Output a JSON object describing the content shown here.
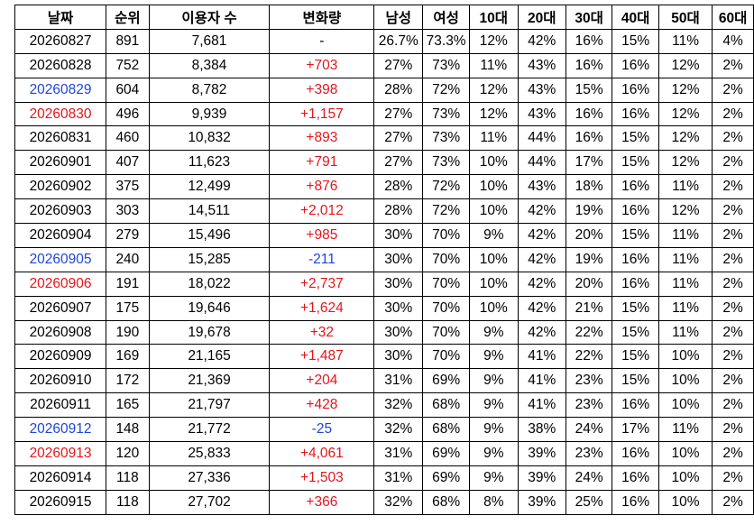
{
  "table": {
    "headers": [
      "날짜",
      "순위",
      "이용자 수",
      "변화량",
      "남성",
      "여성",
      "10대",
      "20대",
      "30대",
      "40대",
      "50대",
      "60대"
    ],
    "rows": [
      {
        "date": "20260827",
        "date_color": "black",
        "rank": "891",
        "users": "7,681",
        "change": "-",
        "change_color": "black",
        "male": "26.7%",
        "female": "73.3%",
        "a10": "12%",
        "a20": "42%",
        "a30": "16%",
        "a40": "15%",
        "a50": "11%",
        "a60": "4%"
      },
      {
        "date": "20260828",
        "date_color": "black",
        "rank": "752",
        "users": "8,384",
        "change": "+703",
        "change_color": "red",
        "male": "27%",
        "female": "73%",
        "a10": "11%",
        "a20": "43%",
        "a30": "16%",
        "a40": "16%",
        "a50": "12%",
        "a60": "2%"
      },
      {
        "date": "20260829",
        "date_color": "blue",
        "rank": "604",
        "users": "8,782",
        "change": "+398",
        "change_color": "red",
        "male": "28%",
        "female": "72%",
        "a10": "12%",
        "a20": "43%",
        "a30": "15%",
        "a40": "16%",
        "a50": "12%",
        "a60": "2%"
      },
      {
        "date": "20260830",
        "date_color": "red",
        "rank": "496",
        "users": "9,939",
        "change": "+1,157",
        "change_color": "red",
        "male": "27%",
        "female": "73%",
        "a10": "12%",
        "a20": "43%",
        "a30": "16%",
        "a40": "16%",
        "a50": "12%",
        "a60": "2%"
      },
      {
        "date": "20260831",
        "date_color": "black",
        "rank": "460",
        "users": "10,832",
        "change": "+893",
        "change_color": "red",
        "male": "27%",
        "female": "73%",
        "a10": "11%",
        "a20": "44%",
        "a30": "16%",
        "a40": "15%",
        "a50": "12%",
        "a60": "2%"
      },
      {
        "date": "20260901",
        "date_color": "black",
        "rank": "407",
        "users": "11,623",
        "change": "+791",
        "change_color": "red",
        "male": "27%",
        "female": "73%",
        "a10": "10%",
        "a20": "44%",
        "a30": "17%",
        "a40": "15%",
        "a50": "12%",
        "a60": "2%"
      },
      {
        "date": "20260902",
        "date_color": "black",
        "rank": "375",
        "users": "12,499",
        "change": "+876",
        "change_color": "red",
        "male": "28%",
        "female": "72%",
        "a10": "10%",
        "a20": "43%",
        "a30": "18%",
        "a40": "16%",
        "a50": "11%",
        "a60": "2%"
      },
      {
        "date": "20260903",
        "date_color": "black",
        "rank": "303",
        "users": "14,511",
        "change": "+2,012",
        "change_color": "red",
        "male": "28%",
        "female": "72%",
        "a10": "10%",
        "a20": "42%",
        "a30": "19%",
        "a40": "16%",
        "a50": "12%",
        "a60": "2%"
      },
      {
        "date": "20260904",
        "date_color": "black",
        "rank": "279",
        "users": "15,496",
        "change": "+985",
        "change_color": "red",
        "male": "30%",
        "female": "70%",
        "a10": "9%",
        "a20": "42%",
        "a30": "20%",
        "a40": "15%",
        "a50": "11%",
        "a60": "2%"
      },
      {
        "date": "20260905",
        "date_color": "blue",
        "rank": "240",
        "users": "15,285",
        "change": "-211",
        "change_color": "blue",
        "male": "30%",
        "female": "70%",
        "a10": "10%",
        "a20": "42%",
        "a30": "19%",
        "a40": "16%",
        "a50": "11%",
        "a60": "2%"
      },
      {
        "date": "20260906",
        "date_color": "red",
        "rank": "191",
        "users": "18,022",
        "change": "+2,737",
        "change_color": "red",
        "male": "30%",
        "female": "70%",
        "a10": "10%",
        "a20": "42%",
        "a30": "20%",
        "a40": "16%",
        "a50": "11%",
        "a60": "2%"
      },
      {
        "date": "20260907",
        "date_color": "black",
        "rank": "175",
        "users": "19,646",
        "change": "+1,624",
        "change_color": "red",
        "male": "30%",
        "female": "70%",
        "a10": "10%",
        "a20": "42%",
        "a30": "21%",
        "a40": "15%",
        "a50": "11%",
        "a60": "2%"
      },
      {
        "date": "20260908",
        "date_color": "black",
        "rank": "190",
        "users": "19,678",
        "change": "+32",
        "change_color": "red",
        "male": "30%",
        "female": "70%",
        "a10": "9%",
        "a20": "42%",
        "a30": "22%",
        "a40": "15%",
        "a50": "11%",
        "a60": "2%"
      },
      {
        "date": "20260909",
        "date_color": "black",
        "rank": "169",
        "users": "21,165",
        "change": "+1,487",
        "change_color": "red",
        "male": "30%",
        "female": "70%",
        "a10": "9%",
        "a20": "41%",
        "a30": "22%",
        "a40": "15%",
        "a50": "10%",
        "a60": "2%"
      },
      {
        "date": "20260910",
        "date_color": "black",
        "rank": "172",
        "users": "21,369",
        "change": "+204",
        "change_color": "red",
        "male": "31%",
        "female": "69%",
        "a10": "9%",
        "a20": "41%",
        "a30": "23%",
        "a40": "15%",
        "a50": "10%",
        "a60": "2%"
      },
      {
        "date": "20260911",
        "date_color": "black",
        "rank": "165",
        "users": "21,797",
        "change": "+428",
        "change_color": "red",
        "male": "32%",
        "female": "68%",
        "a10": "9%",
        "a20": "41%",
        "a30": "23%",
        "a40": "16%",
        "a50": "10%",
        "a60": "2%"
      },
      {
        "date": "20260912",
        "date_color": "blue",
        "rank": "148",
        "users": "21,772",
        "change": "-25",
        "change_color": "blue",
        "male": "32%",
        "female": "68%",
        "a10": "9%",
        "a20": "38%",
        "a30": "24%",
        "a40": "17%",
        "a50": "11%",
        "a60": "2%"
      },
      {
        "date": "20260913",
        "date_color": "red",
        "rank": "120",
        "users": "25,833",
        "change": "+4,061",
        "change_color": "red",
        "male": "31%",
        "female": "69%",
        "a10": "9%",
        "a20": "39%",
        "a30": "23%",
        "a40": "16%",
        "a50": "10%",
        "a60": "2%"
      },
      {
        "date": "20260914",
        "date_color": "black",
        "rank": "118",
        "users": "27,336",
        "change": "+1,503",
        "change_color": "red",
        "male": "31%",
        "female": "69%",
        "a10": "9%",
        "a20": "39%",
        "a30": "24%",
        "a40": "16%",
        "a50": "10%",
        "a60": "2%"
      },
      {
        "date": "20260915",
        "date_color": "black",
        "rank": "118",
        "users": "27,702",
        "change": "+366",
        "change_color": "red",
        "male": "32%",
        "female": "68%",
        "a10": "8%",
        "a20": "39%",
        "a30": "25%",
        "a40": "16%",
        "a50": "10%",
        "a60": "2%"
      }
    ]
  },
  "colors": {
    "text": "#000000",
    "blue": "#1f45d6",
    "red": "#e5151b",
    "border": "#000000",
    "background": "#ffffff"
  }
}
